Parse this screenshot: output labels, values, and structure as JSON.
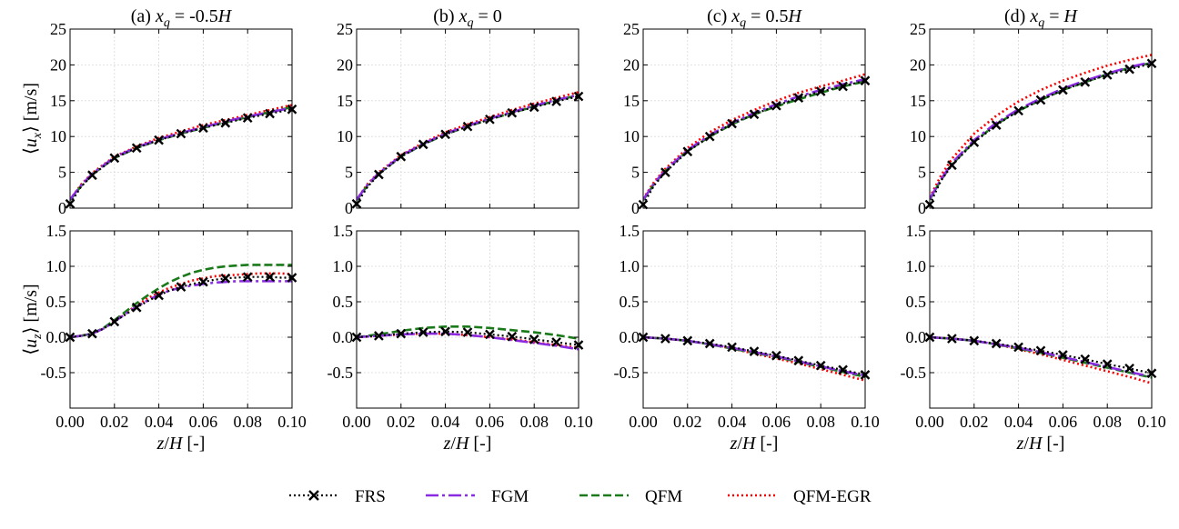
{
  "chart_data": {
    "type": "line",
    "columns": [
      {
        "title_prefix": "(a) ",
        "title_var": "x",
        "title_sub": "q",
        "title_eq": " = -0.5",
        "title_H": "H",
        "ux": {
          "z": [
            0,
            0.005,
            0.01,
            0.02,
            0.03,
            0.04,
            0.05,
            0.06,
            0.07,
            0.08,
            0.09,
            0.1
          ],
          "FRS": [
            0.6,
            3.0,
            4.6,
            7.0,
            8.4,
            9.5,
            10.4,
            11.2,
            11.9,
            12.6,
            13.2,
            13.8
          ],
          "FGM": [
            1.2,
            3.2,
            4.8,
            7.1,
            8.5,
            9.6,
            10.5,
            11.3,
            12.1,
            12.8,
            13.4,
            14.0
          ],
          "QFM": [
            1.1,
            3.1,
            4.7,
            7.0,
            8.4,
            9.5,
            10.4,
            11.2,
            12.0,
            12.7,
            13.4,
            14.1
          ],
          "QFM-EGR": [
            1.2,
            3.3,
            4.9,
            7.2,
            8.6,
            9.8,
            10.7,
            11.6,
            12.3,
            13.0,
            13.7,
            14.4
          ],
          "FRS_markers": [
            0,
            0.01,
            0.02,
            0.03,
            0.04,
            0.05,
            0.06,
            0.07,
            0.08,
            0.09,
            0.1
          ]
        },
        "uz": {
          "z": [
            0,
            0.005,
            0.01,
            0.015,
            0.02,
            0.025,
            0.03,
            0.035,
            0.04,
            0.045,
            0.05,
            0.055,
            0.06,
            0.065,
            0.07,
            0.075,
            0.08,
            0.085,
            0.09,
            0.095,
            0.1
          ],
          "FRS": [
            0.0,
            0.02,
            0.05,
            0.12,
            0.22,
            0.32,
            0.42,
            0.51,
            0.59,
            0.66,
            0.71,
            0.75,
            0.78,
            0.81,
            0.83,
            0.84,
            0.85,
            0.85,
            0.85,
            0.84,
            0.84
          ],
          "FGM": [
            0.0,
            0.02,
            0.05,
            0.12,
            0.22,
            0.33,
            0.43,
            0.52,
            0.6,
            0.66,
            0.7,
            0.73,
            0.75,
            0.77,
            0.78,
            0.79,
            0.79,
            0.79,
            0.79,
            0.79,
            0.79
          ],
          "QFM": [
            0.0,
            0.02,
            0.05,
            0.13,
            0.24,
            0.36,
            0.48,
            0.59,
            0.69,
            0.78,
            0.85,
            0.91,
            0.95,
            0.98,
            1.0,
            1.01,
            1.02,
            1.02,
            1.02,
            1.02,
            1.02
          ],
          "QFM-EGR": [
            0.0,
            0.02,
            0.05,
            0.12,
            0.23,
            0.34,
            0.45,
            0.55,
            0.63,
            0.7,
            0.75,
            0.8,
            0.83,
            0.86,
            0.87,
            0.88,
            0.89,
            0.9,
            0.9,
            0.9,
            0.89
          ],
          "FRS_markers": [
            0,
            0.01,
            0.02,
            0.03,
            0.04,
            0.05,
            0.06,
            0.07,
            0.08,
            0.09,
            0.1
          ]
        }
      },
      {
        "title_prefix": "(b) ",
        "title_var": "x",
        "title_sub": "q",
        "title_eq": " = 0",
        "title_H": "",
        "ux": {
          "z": [
            0,
            0.005,
            0.01,
            0.02,
            0.03,
            0.04,
            0.05,
            0.06,
            0.07,
            0.08,
            0.09,
            0.1
          ],
          "FRS": [
            0.6,
            3.0,
            4.7,
            7.2,
            8.9,
            10.3,
            11.4,
            12.4,
            13.3,
            14.1,
            14.9,
            15.6
          ],
          "FGM": [
            1.2,
            3.3,
            4.9,
            7.3,
            9.0,
            10.4,
            11.5,
            12.5,
            13.4,
            14.3,
            15.1,
            15.8
          ],
          "QFM": [
            1.1,
            3.2,
            4.8,
            7.2,
            8.9,
            10.3,
            11.4,
            12.4,
            13.3,
            14.2,
            15.0,
            15.8
          ],
          "QFM-EGR": [
            1.2,
            3.4,
            5.0,
            7.4,
            9.1,
            10.6,
            11.7,
            12.7,
            13.7,
            14.6,
            15.4,
            16.2
          ],
          "FRS_markers": [
            0,
            0.01,
            0.02,
            0.03,
            0.04,
            0.05,
            0.06,
            0.07,
            0.08,
            0.09,
            0.1
          ]
        },
        "uz": {
          "z": [
            0,
            0.01,
            0.02,
            0.03,
            0.04,
            0.05,
            0.06,
            0.07,
            0.08,
            0.09,
            0.1
          ],
          "FRS": [
            0.0,
            0.02,
            0.05,
            0.07,
            0.08,
            0.07,
            0.04,
            0.01,
            -0.03,
            -0.07,
            -0.11
          ],
          "FGM": [
            0.0,
            0.02,
            0.04,
            0.05,
            0.05,
            0.03,
            0.0,
            -0.04,
            -0.08,
            -0.12,
            -0.17
          ],
          "QFM": [
            0.0,
            0.04,
            0.09,
            0.13,
            0.15,
            0.15,
            0.13,
            0.1,
            0.07,
            0.03,
            -0.02
          ],
          "QFM-EGR": [
            0.0,
            0.02,
            0.04,
            0.05,
            0.05,
            0.03,
            0.0,
            -0.03,
            -0.07,
            -0.11,
            -0.15
          ],
          "FRS_markers": [
            0,
            0.01,
            0.02,
            0.03,
            0.04,
            0.05,
            0.06,
            0.07,
            0.08,
            0.09,
            0.1
          ]
        }
      },
      {
        "title_prefix": "(c) ",
        "title_var": "x",
        "title_sub": "q",
        "title_eq": " = 0.5",
        "title_H": "H",
        "ux": {
          "z": [
            0,
            0.005,
            0.01,
            0.02,
            0.03,
            0.04,
            0.05,
            0.06,
            0.07,
            0.08,
            0.09,
            0.1
          ],
          "FRS": [
            0.5,
            3.2,
            5.0,
            7.9,
            10.0,
            11.8,
            13.1,
            14.3,
            15.4,
            16.3,
            17.0,
            17.8
          ],
          "FGM": [
            1.2,
            3.5,
            5.3,
            8.1,
            10.2,
            11.9,
            13.3,
            14.5,
            15.6,
            16.5,
            17.3,
            18.0
          ],
          "QFM": [
            1.1,
            3.4,
            5.2,
            8.0,
            10.0,
            11.7,
            13.1,
            14.2,
            15.2,
            16.1,
            17.0,
            17.7
          ],
          "QFM-EGR": [
            1.3,
            3.7,
            5.5,
            8.4,
            10.6,
            12.3,
            13.7,
            15.0,
            16.1,
            17.0,
            17.8,
            18.7
          ],
          "FRS_markers": [
            0,
            0.01,
            0.02,
            0.03,
            0.04,
            0.05,
            0.06,
            0.07,
            0.08,
            0.09,
            0.1
          ]
        },
        "uz": {
          "z": [
            0,
            0.01,
            0.02,
            0.03,
            0.04,
            0.05,
            0.06,
            0.07,
            0.08,
            0.09,
            0.1
          ],
          "FRS": [
            0.0,
            -0.02,
            -0.05,
            -0.09,
            -0.14,
            -0.2,
            -0.26,
            -0.33,
            -0.4,
            -0.46,
            -0.53
          ],
          "FGM": [
            0.0,
            -0.02,
            -0.05,
            -0.1,
            -0.15,
            -0.21,
            -0.27,
            -0.34,
            -0.41,
            -0.48,
            -0.54
          ],
          "QFM": [
            0.0,
            -0.02,
            -0.05,
            -0.1,
            -0.16,
            -0.22,
            -0.28,
            -0.35,
            -0.42,
            -0.49,
            -0.56
          ],
          "QFM-EGR": [
            0.0,
            -0.02,
            -0.05,
            -0.1,
            -0.16,
            -0.23,
            -0.3,
            -0.37,
            -0.45,
            -0.53,
            -0.61
          ],
          "FRS_markers": [
            0,
            0.01,
            0.02,
            0.03,
            0.04,
            0.05,
            0.06,
            0.07,
            0.08,
            0.09,
            0.1
          ]
        }
      },
      {
        "title_prefix": "(d) ",
        "title_var": "x",
        "title_sub": "q",
        "title_eq": " = ",
        "title_H": "H",
        "ux": {
          "z": [
            0,
            0.005,
            0.01,
            0.02,
            0.03,
            0.04,
            0.05,
            0.06,
            0.07,
            0.08,
            0.09,
            0.1
          ],
          "FRS": [
            0.5,
            3.8,
            6.0,
            9.2,
            11.6,
            13.6,
            15.1,
            16.5,
            17.6,
            18.6,
            19.4,
            20.2
          ],
          "FGM": [
            1.3,
            4.0,
            6.3,
            9.5,
            11.9,
            13.8,
            15.3,
            16.7,
            17.8,
            18.8,
            19.7,
            20.4
          ],
          "QFM": [
            1.2,
            3.9,
            6.1,
            9.3,
            11.7,
            13.6,
            15.1,
            16.5,
            17.6,
            18.7,
            19.6,
            20.3
          ],
          "QFM-EGR": [
            1.5,
            4.5,
            6.9,
            10.4,
            12.9,
            14.9,
            16.5,
            17.8,
            18.9,
            19.9,
            20.7,
            21.4
          ],
          "FRS_markers": [
            0,
            0.01,
            0.02,
            0.03,
            0.04,
            0.05,
            0.06,
            0.07,
            0.08,
            0.09,
            0.1
          ]
        },
        "uz": {
          "z": [
            0,
            0.01,
            0.02,
            0.03,
            0.04,
            0.05,
            0.06,
            0.07,
            0.08,
            0.09,
            0.1
          ],
          "FRS": [
            0.0,
            -0.02,
            -0.05,
            -0.09,
            -0.14,
            -0.19,
            -0.25,
            -0.31,
            -0.38,
            -0.44,
            -0.51
          ],
          "FGM": [
            0.0,
            -0.02,
            -0.05,
            -0.1,
            -0.15,
            -0.21,
            -0.28,
            -0.35,
            -0.42,
            -0.49,
            -0.56
          ],
          "QFM": [
            0.0,
            -0.02,
            -0.05,
            -0.1,
            -0.16,
            -0.22,
            -0.29,
            -0.36,
            -0.43,
            -0.5,
            -0.57
          ],
          "QFM-EGR": [
            0.0,
            -0.02,
            -0.05,
            -0.1,
            -0.17,
            -0.24,
            -0.32,
            -0.4,
            -0.48,
            -0.56,
            -0.65
          ],
          "FRS_markers": [
            0,
            0.01,
            0.02,
            0.03,
            0.04,
            0.05,
            0.06,
            0.07,
            0.08,
            0.09,
            0.1
          ]
        }
      }
    ],
    "rows": [
      {
        "key": "ux",
        "ylabel_var": "u",
        "ylabel_sub": "x",
        "ylabel_unit": " [m/s]",
        "ylim": [
          0,
          25
        ],
        "yticks": [
          0,
          5,
          10,
          15,
          20,
          25
        ],
        "ytick_labels": [
          "0",
          "5",
          "10",
          "15",
          "20",
          "25"
        ]
      },
      {
        "key": "uz",
        "ylabel_var": "u",
        "ylabel_sub": "z",
        "ylabel_unit": " [m/s]",
        "ylim": [
          -1.0,
          1.5
        ],
        "yticks": [
          -0.5,
          0.0,
          0.5,
          1.0,
          1.5
        ],
        "ytick_labels": [
          "-0.5",
          "0.0",
          "0.5",
          "1.0",
          "1.5"
        ]
      }
    ],
    "xlim": [
      0,
      0.1
    ],
    "xticks": [
      0,
      0.02,
      0.04,
      0.06,
      0.08,
      0.1
    ],
    "xtick_labels": [
      "0.00",
      "0.02",
      "0.04",
      "0.06",
      "0.08",
      "0.10"
    ],
    "xlabel_var": "z",
    "xlabel_rest": "/",
    "xlabel_H": "H",
    "xlabel_unit": " [-]",
    "grid": true,
    "legend_position": "bottom-center",
    "series": [
      {
        "name": "FRS",
        "color": "#000000",
        "dash": "2 3",
        "marker": "x"
      },
      {
        "name": "FGM",
        "color": "#8a2be2",
        "dash": "14 4 3 4",
        "marker": "none"
      },
      {
        "name": "QFM",
        "color": "#1a7a1a",
        "dash": "9 4",
        "marker": "none"
      },
      {
        "name": "QFM-EGR",
        "color": "#ff0000",
        "dash": "2 3",
        "marker": "none"
      }
    ]
  }
}
